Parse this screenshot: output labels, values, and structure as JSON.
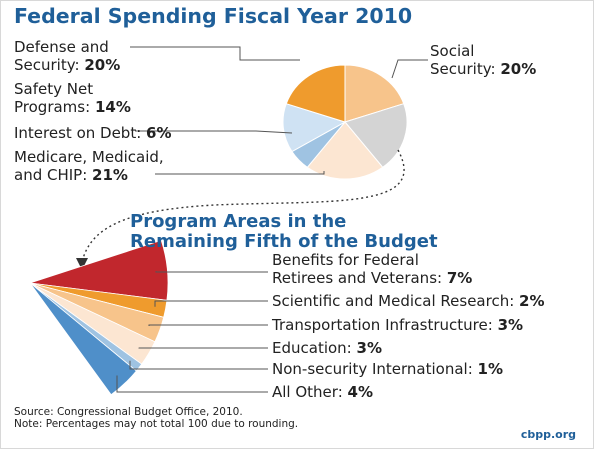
{
  "title": "Federal Spending Fiscal Year 2010",
  "subtitle_lines": [
    "Program Areas in the",
    "Remaining Fifth of the Budget"
  ],
  "source_lines": [
    "Source: Congressional Budget Office, 2010.",
    "Note: Percentages may not total 100 due to rounding."
  ],
  "brand": "cbpp.org",
  "chart_data": [
    {
      "type": "pie",
      "title": "Federal Spending Fiscal Year 2010",
      "slices": [
        {
          "label": "Social\nSecurity:",
          "value": 20,
          "display": "20%",
          "color": "#f7c48b"
        },
        {
          "label": "Remaining fifth of the budget",
          "value": 20,
          "display": "",
          "color": "#d4d4d4"
        },
        {
          "label": "Medicare, Medicaid,\nand CHIP:",
          "value": 21,
          "display": "21%",
          "color": "#fce6d2"
        },
        {
          "label": "Interest on Debt:",
          "value": 6,
          "display": "6%",
          "color": "#9fc3e2"
        },
        {
          "label": "Safety Net\nPrograms:",
          "value": 14,
          "display": "14%",
          "color": "#cfe2f3"
        },
        {
          "label": "Defense and\nSecurity:",
          "value": 20,
          "display": "20%",
          "color": "#ef9b2d"
        }
      ]
    },
    {
      "type": "pie",
      "title": "Program Areas in the Remaining Fifth of the Budget",
      "slices": [
        {
          "label": "Benefits for Federal\nRetirees and Veterans:",
          "value": 7,
          "display": "7%",
          "color": "#c1272d"
        },
        {
          "label": "Scientific and Medical Research:",
          "value": 2,
          "display": "2%",
          "color": "#ef9b2d"
        },
        {
          "label": "Transportation Infrastructure:",
          "value": 3,
          "display": "3%",
          "color": "#f7c48b"
        },
        {
          "label": "Education:",
          "value": 3,
          "display": "3%",
          "color": "#fce6d2"
        },
        {
          "label": "Non-security International:",
          "value": 1,
          "display": "1%",
          "color": "#9fc3e2"
        },
        {
          "label": "All Other:",
          "value": 4,
          "display": "4%",
          "color": "#4f8fc9"
        }
      ]
    }
  ]
}
